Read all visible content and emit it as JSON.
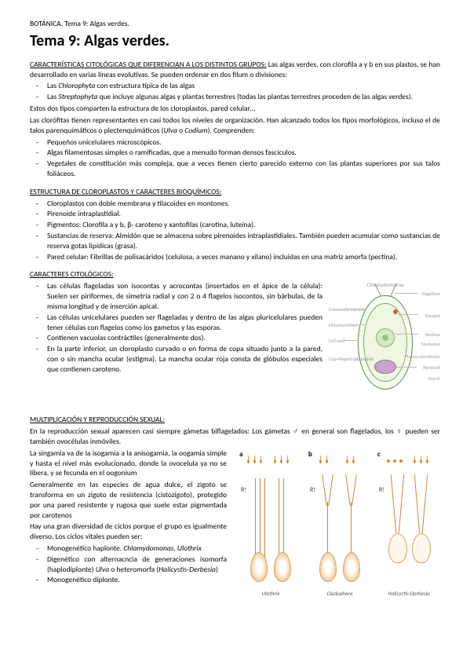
{
  "header": "BOTÁNICA. Tema 9: Algas verdes.",
  "title": "Tema 9: Algas verdes.",
  "sections": {
    "s1": {
      "head": "CARACTERÍSTICAS CITOLÓGICAS QUE DIFERENCIAN A LOS DISTINTOS GRUPOS:",
      "intro": " Las algas verdes, con clorofila a y b en sus plastos, se han desarrollado en varias líneas evolutivas. Se pueden ordenar en dos filum o divisiones:",
      "items": [
        "Las <i>Chlorophyta</i> con estructura típica de las algas",
        "Las <i>Streptophyta</i> que incluye algunas algas y plantas terrestres (todas las plantas terrestres proceden de las algas verdes)."
      ],
      "p2": "Estos dos tipos comparten la estructura de los cloroplastos, pared celular…",
      "p3": "Las clorófitas tienen representantes en casi todos los niveles de organización. Han alcanzado todos los tipos morfológicos, incluso el de talos parenquimáticos o plectenquimáticos (<i>Ulva</i> o <i>Codium</i>). Comprenden:",
      "items2": [
        "Pequeños unicelulares microscópicos.",
        "Algas filamentosas simples o ramificadas, que a menudo forman densos fascículos.",
        "Vegetales de constitución más compleja, que a veces tienen cierto parecido externo con las plantas superiores por sus talos foliáceos."
      ]
    },
    "s2": {
      "head": "ESTRUCTURA DE CLOROPLASTOS Y CARACTERES BIOQUÍMICOS:",
      "items": [
        "Cloroplastos con doble membrana y tilacoides en montones.",
        "Pirenoide intraplastidial.",
        "Pigmentos: Clorofila a y b, β- caroteno y xantofilas (carotina, luteína).",
        "Sustancias de reserva: Almidón que se almacena sobre pirenoides intraplastidiales. También pueden acumular como sustancias de reserva gotas lipídicas (grasa).",
        "Pared celular: Fibrillas de polisacáridos (celulosa, a veces manano y xilano) incluidas en una matriz amorfa (pectina)."
      ]
    },
    "s3": {
      "head": "CARACTERES CITOLÓGICOS:",
      "items": [
        "Las células flageladas son isocontas y acrocontas (insertados en el ápice de la célula): Suelen ser piriformes, de simetría radial y con 2 o 4 flagelos isocontos, sin bárbulas, de la misma longitud y de inserción apical.",
        "Las células unicelulares pueden ser flageladas y dentro de las algas pluricelulares pueden tener células con flagelos como los gametos y las esporas.",
        "Contienen vacuolas contráctiles (generalmente dos).",
        "En la parte inferior, un cloroplasto curvado o en forma de copa situado junto a la pared, con o sin mancha ocular (estigma). La mancha ocular roja consta de glóbulos especiales que contienen caroteno."
      ],
      "diagram": {
        "title": "Chlamydomonas",
        "labels": {
          "flagellum": "Flagellum",
          "vacuole": "Contractile vacuole",
          "wall": "Cell wall",
          "mito": "Mitochondrion",
          "nucleus": "Nucleus",
          "nucleolus": "Nucleolus",
          "cup": "Cup-shaped chloroplast",
          "pyrenoid": "Pyrenoid",
          "starch": "Starch",
          "eyespot": "Eyespot",
          "plasma": "Plasma membrane"
        }
      }
    },
    "s4": {
      "head": "MULTIPLICACIÓN Y REPRODUCCIÓN SEXUAL:",
      "p1": "En la reproducción sexual aparecen casi siempre gámetas biflagelados: Los gámetas ♂ en general son flagelados, los ♀ pueden ser también ovocélulas inmóviles.",
      "p2": "La singamia va de la isogamia a la anisogamia, la oogamia simple y hasta el nivel más evolucionado, donde la ovocelula ya no se libera, y se fecunda en el oogonium",
      "p3": "Generalmente en las especies de agua dulce, el zigoto se transforma en un zigoto de resistencia (cistozigoto), protegido por una pared resistente y rugosa que suele estar pigmentada por carotenos",
      "p4": "Hay una gran diversidad de ciclos porque el grupo es igualmente diverso. Los ciclos vitales pueden ser:",
      "items": [
        "Monogenético haplonte. <i>Chlamydomonas, Ulothrix</i>",
        "Digenético con alternacncia de generaciones isomorfa (haplodiplonte) <i>Ulva</i> o heteromorfa (<i>Halicystis-Derbesia</i>)",
        "Monogenético diplonte."
      ],
      "cycles": {
        "a": {
          "label": "a",
          "r": "R!",
          "caption": "Ulothrix"
        },
        "b": {
          "label": "b",
          "r": "R!",
          "caption": "Cladophora"
        },
        "c": {
          "label": "c",
          "r": "R!",
          "caption": "Halicystis-Derbesia"
        }
      }
    }
  }
}
